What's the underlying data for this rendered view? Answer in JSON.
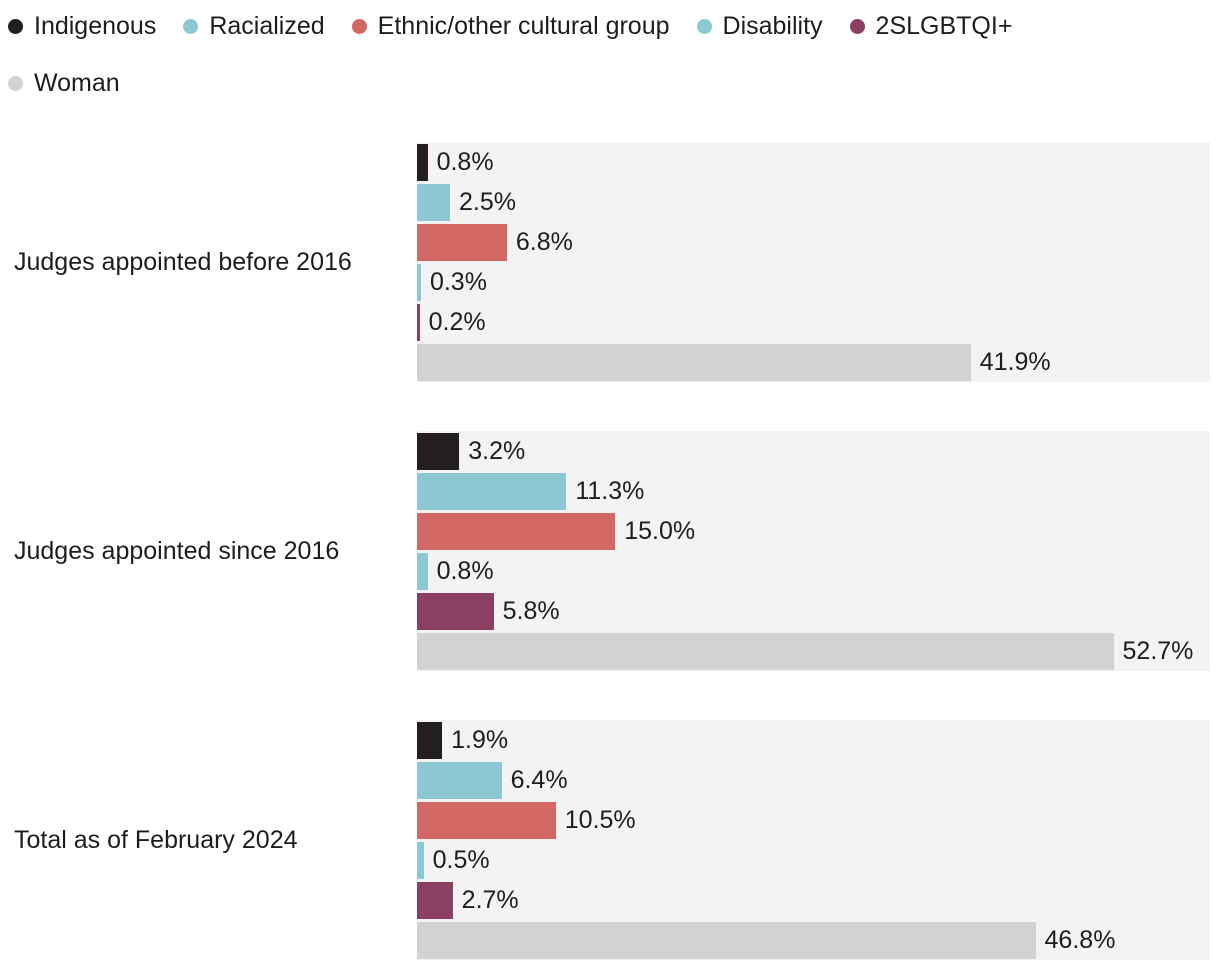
{
  "colors": {
    "indigenous": "#231f20",
    "racialized": "#8cc8d3",
    "ethnic_other_cultural_group": "#d26764",
    "disability": "#8cc8d3",
    "2slgbtqi": "#8b3f63",
    "woman": "#d1d2d4",
    "plot_background": "#f3f3f3",
    "text": "#1d1d1d"
  },
  "legend": {
    "items": [
      {
        "label": "Indigenous",
        "color": "#231f20"
      },
      {
        "label": "Racialized",
        "color": "#8cc8d3"
      },
      {
        "label": "Ethnic/other cultural group",
        "color": "#d26764"
      },
      {
        "label": "Disability",
        "color": "#8cc8d3"
      },
      {
        "label": "2SLGBTQI+",
        "color": "#8b3f63"
      },
      {
        "label": "Woman",
        "color": "#d1d2d4"
      }
    ]
  },
  "chart_data": {
    "type": "bar",
    "orientation": "horizontal",
    "title": "",
    "xlabel": "",
    "ylabel": "",
    "xlim": [
      0,
      60
    ],
    "grid": false,
    "legend_position": "top",
    "categories": [
      "Judges appointed before 2016",
      "Judges appointed since 2016",
      "Total as of February 2024"
    ],
    "series": [
      {
        "name": "Indigenous",
        "color": "#231f20",
        "values": [
          0.8,
          3.2,
          1.9
        ],
        "value_labels": [
          "0.8%",
          "3.2%",
          "1.9%"
        ]
      },
      {
        "name": "Racialized",
        "color": "#8cc8d3",
        "values": [
          2.5,
          11.3,
          6.4
        ],
        "value_labels": [
          "2.5%",
          "11.3%",
          "6.4%"
        ]
      },
      {
        "name": "Ethnic/other cultural group",
        "color": "#d26764",
        "values": [
          6.8,
          15.0,
          10.5
        ],
        "value_labels": [
          "6.8%",
          "15.0%",
          "10.5%"
        ]
      },
      {
        "name": "Disability",
        "color": "#8cc8d3",
        "values": [
          0.3,
          0.8,
          0.5
        ],
        "value_labels": [
          "0.3%",
          "0.8%",
          "0.5%"
        ]
      },
      {
        "name": "2SLGBTQI+",
        "color": "#8b3f63",
        "values": [
          0.2,
          5.8,
          2.7
        ],
        "value_labels": [
          "0.2%",
          "5.8%",
          "2.7%"
        ]
      },
      {
        "name": "Woman",
        "color": "#d1d2d4",
        "values": [
          41.9,
          52.7,
          46.8
        ],
        "value_labels": [
          "41.9%",
          "52.7%",
          "46.8%"
        ]
      }
    ]
  }
}
